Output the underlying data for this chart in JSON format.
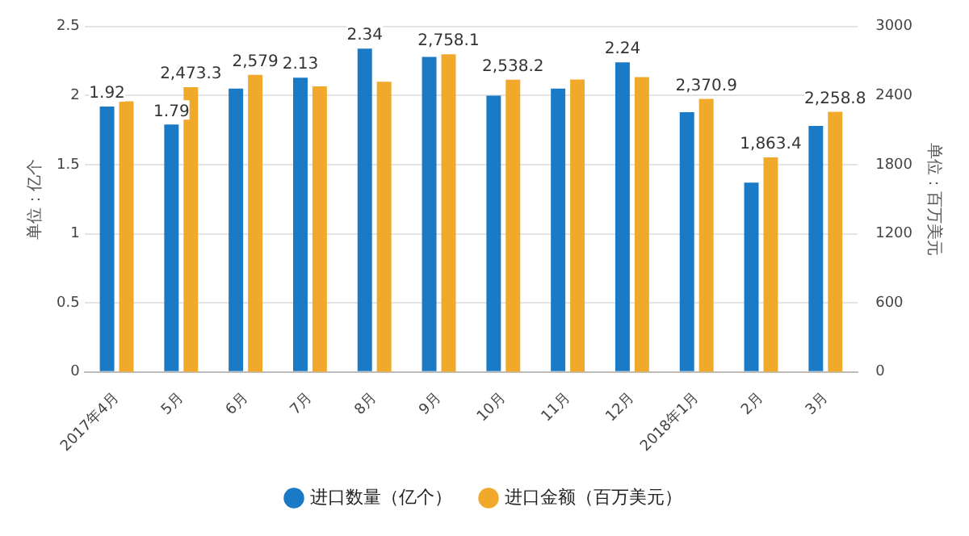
{
  "chart_data": {
    "type": "bar",
    "categories": [
      "2017年4月",
      "5月",
      "6月",
      "7月",
      "8月",
      "9月",
      "10月",
      "11月",
      "12月",
      "2018年1月",
      "2月",
      "3月"
    ],
    "series": [
      {
        "name": "进口数量（亿个）",
        "color": "#1a7ac6",
        "values": [
          1.92,
          1.79,
          2.05,
          2.13,
          2.34,
          2.28,
          2.0,
          2.05,
          2.24,
          1.88,
          1.37,
          1.78
        ],
        "value_labels": [
          "1.92",
          "1.79",
          null,
          "2.13",
          "2.34",
          null,
          null,
          null,
          "2.24",
          null,
          null,
          null
        ]
      },
      {
        "name": "进口金额（百万美元）",
        "color": "#f0a92a",
        "axis": "y2",
        "values": [
          2350,
          2473.3,
          2579,
          2480,
          2520,
          2758.1,
          2538.2,
          2540,
          2560,
          2370.9,
          1863.4,
          2258.8
        ],
        "value_labels": [
          null,
          "2,473.3",
          "2,579",
          null,
          null,
          "2,758.1",
          "2,538.2",
          null,
          null,
          "2,370.9",
          "1,863.4",
          "2,258.8"
        ]
      }
    ],
    "ylabel": "单位：亿个",
    "y2label": "单位：百万美元",
    "ylim": [
      0,
      2.5
    ],
    "yticks": [
      0,
      0.5,
      1,
      1.5,
      2,
      2.5
    ],
    "y2lim": [
      0,
      3000
    ],
    "y2ticks": [
      0,
      600,
      1200,
      1800,
      2400,
      3000
    ],
    "grid": "y",
    "legend": "bottom"
  }
}
